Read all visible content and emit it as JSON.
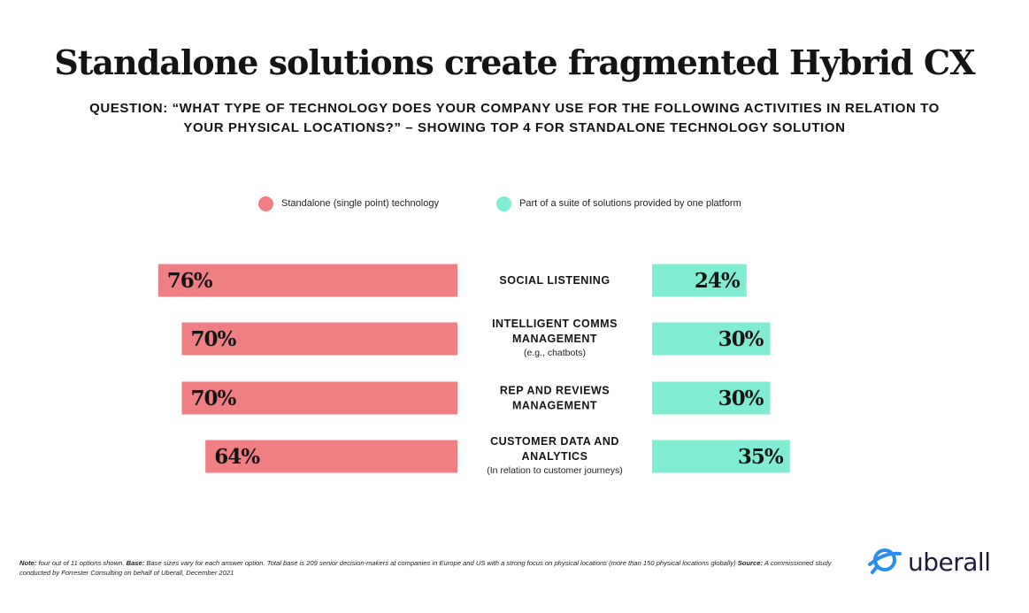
{
  "title": "Standalone solutions create fragmented Hybrid CX",
  "subtitle": "QUESTION: “WHAT TYPE OF TECHNOLOGY DOES YOUR COMPANY USE FOR THE FOLLOWING ACTIVITIES IN RELATION TO YOUR PHYSICAL LOCATIONS?” – SHOWING TOP 4 FOR STANDALONE TECHNOLOGY SOLUTION",
  "legend": {
    "standalone": "Standalone (single point) technology",
    "suite": "Part of a suite of solutions provided by one platform"
  },
  "colors": {
    "standalone": "#ef7f83",
    "suite": "#80edd2"
  },
  "chart_data": {
    "type": "bar",
    "orientation": "diverging-horizontal",
    "categories": [
      {
        "lines": [
          "SOCIAL LISTENING"
        ],
        "sub": ""
      },
      {
        "lines": [
          "INTELLIGENT COMMS",
          "MANAGEMENT"
        ],
        "sub": "(e.g., chatbots)"
      },
      {
        "lines": [
          "REP AND REVIEWS",
          "MANAGEMENT"
        ],
        "sub": ""
      },
      {
        "lines": [
          "CUSTOMER DATA AND",
          "ANALYTICS"
        ],
        "sub": "(In relation to customer journeys)"
      }
    ],
    "series": [
      {
        "name": "Standalone (single point) technology",
        "values": [
          76,
          70,
          70,
          64
        ],
        "labels": [
          "76%",
          "70%",
          "70%",
          "64%"
        ]
      },
      {
        "name": "Part of a suite of solutions provided by one platform",
        "values": [
          24,
          30,
          30,
          35
        ],
        "labels": [
          "24%",
          "30%",
          "30%",
          "35%"
        ]
      }
    ],
    "value_unit": "%"
  },
  "footnote": {
    "note_label": "Note:",
    "note_text": " four out of 11 options shown. ",
    "base_label": "Base:",
    "base_text": " Base sizes vary for each answer option. Total base is 209 senior decision-makers at companies in Europe and US with a strong focus on physical locations (more than 150 physical locations globally) ",
    "source_label": "Source:",
    "source_text": " A commissioned study conducted by Forrester Consulting on behalf of Uberall, December 2021"
  },
  "logo": {
    "text": "uberall",
    "icon": "uberall-logo-icon"
  }
}
